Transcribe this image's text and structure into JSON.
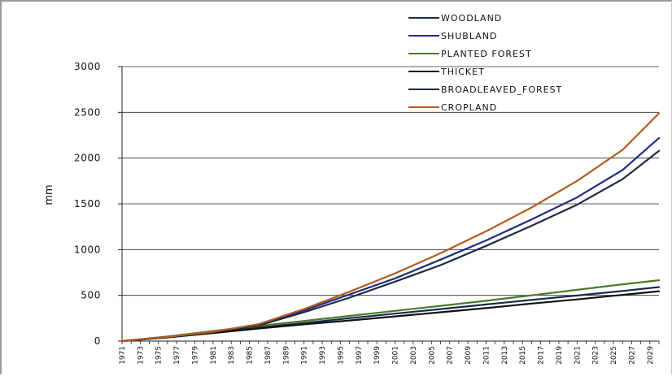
{
  "chart_data": {
    "type": "line",
    "title": "",
    "xlabel": "",
    "ylabel": "mm",
    "ylim": [
      0,
      3000
    ],
    "yticks": [
      0,
      500,
      1000,
      1500,
      2000,
      2500,
      3000
    ],
    "xlim": [
      1971,
      2030
    ],
    "x_tick_labels": [
      "1971",
      "1973",
      "1975",
      "1977",
      "1979",
      "1981",
      "1983",
      "1985",
      "1987",
      "1989",
      "1991",
      "1993",
      "1995",
      "1997",
      "1999",
      "2001",
      "2003",
      "2005",
      "2007",
      "2009",
      "2011",
      "2013",
      "2015",
      "2017",
      "2019",
      "2021",
      "2023",
      "2025",
      "2027",
      "2029"
    ],
    "grid": "horizontal",
    "legend_position": "top-right",
    "x": [
      1971,
      1976,
      1981,
      1986,
      1991,
      1996,
      2001,
      2006,
      2011,
      2016,
      2021,
      2026,
      2030
    ],
    "series": [
      {
        "name": "WOODLAND",
        "color": "#1b2b4e",
        "values": [
          0,
          42,
          95,
          148,
          198,
          250,
          300,
          350,
          400,
          450,
          498,
          548,
          590
        ]
      },
      {
        "name": "SHUBLAND",
        "color": "#1f2d80",
        "values": [
          0,
          45,
          100,
          180,
          335,
          510,
          685,
          890,
          1100,
          1330,
          1570,
          1870,
          2220
        ]
      },
      {
        "name": "PLANTED FOREST",
        "color": "#4a7a2c",
        "values": [
          0,
          50,
          110,
          165,
          220,
          275,
          330,
          385,
          440,
          500,
          560,
          620,
          665
        ]
      },
      {
        "name": "THICKET",
        "color": "#111111",
        "values": [
          0,
          40,
          88,
          138,
          183,
          225,
          270,
          315,
          360,
          410,
          455,
          505,
          545
        ]
      },
      {
        "name": "BROADLEAVED_FOREST",
        "color": "#1d2a44",
        "values": [
          0,
          44,
          98,
          170,
          315,
          475,
          650,
          830,
          1040,
          1260,
          1490,
          1770,
          2080
        ]
      },
      {
        "name": "CROPLAND",
        "color": "#b55a1e",
        "values": [
          0,
          46,
          102,
          185,
          350,
          540,
          740,
          960,
          1200,
          1460,
          1750,
          2090,
          2490
        ]
      }
    ]
  }
}
